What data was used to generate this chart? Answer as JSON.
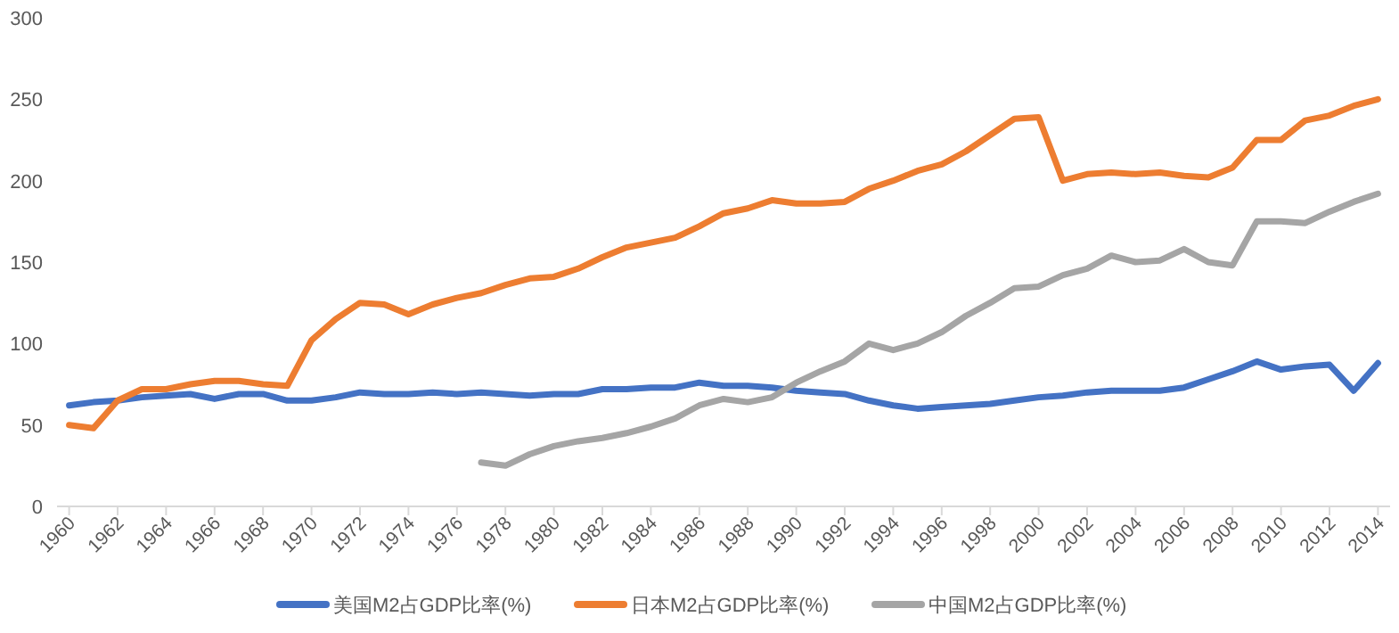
{
  "chart_data": {
    "type": "line",
    "categories": [
      "1960",
      null,
      "1962",
      null,
      "1964",
      null,
      "1966",
      null,
      "1968",
      null,
      "1970",
      null,
      "1972",
      null,
      "1974",
      null,
      "1976",
      null,
      "1978",
      null,
      "1980",
      null,
      "1982",
      null,
      "1984",
      null,
      "1986",
      null,
      "1988",
      null,
      "1990",
      null,
      "1992",
      null,
      "1994",
      null,
      "1996",
      null,
      "1998",
      null,
      "2000",
      null,
      "2002",
      null,
      "2004",
      null,
      "2006",
      null,
      "2008",
      null,
      "2010",
      null,
      "2012",
      null,
      "2014"
    ],
    "series": [
      {
        "name": "美国M2占GDP比率(%)",
        "color": "#4472c4",
        "values": [
          62,
          64,
          65,
          67,
          68,
          69,
          66,
          69,
          69,
          65,
          65,
          67,
          70,
          69,
          69,
          70,
          69,
          70,
          69,
          68,
          69,
          69,
          72,
          72,
          73,
          73,
          76,
          74,
          74,
          73,
          71,
          70,
          69,
          65,
          62,
          60,
          61,
          62,
          63,
          65,
          67,
          68,
          70,
          71,
          71,
          71,
          73,
          78,
          83,
          89,
          84,
          86,
          87,
          71,
          88
        ]
      },
      {
        "name": "日本M2占GDP比率(%)",
        "color": "#ed7d31",
        "values": [
          50,
          48,
          65,
          72,
          72,
          75,
          77,
          77,
          75,
          74,
          102,
          115,
          125,
          124,
          118,
          124,
          128,
          131,
          136,
          140,
          141,
          146,
          153,
          159,
          162,
          165,
          172,
          180,
          183,
          188,
          186,
          186,
          187,
          195,
          200,
          206,
          210,
          218,
          228,
          238,
          239,
          200,
          204,
          205,
          204,
          205,
          203,
          202,
          208,
          225,
          225,
          237,
          240,
          246,
          250
        ]
      },
      {
        "name": "中国M2占GDP比率(%)",
        "color": "#a5a5a5",
        "values": [
          null,
          null,
          null,
          null,
          null,
          null,
          null,
          null,
          null,
          null,
          null,
          null,
          null,
          null,
          null,
          null,
          null,
          27,
          25,
          32,
          37,
          40,
          42,
          45,
          49,
          54,
          62,
          66,
          64,
          67,
          76,
          83,
          89,
          100,
          96,
          100,
          107,
          117,
          125,
          134,
          135,
          142,
          146,
          154,
          150,
          151,
          158,
          150,
          148,
          175,
          175,
          174,
          181,
          187,
          192
        ]
      }
    ],
    "ylim": [
      0,
      300
    ],
    "yticks": [
      0,
      50,
      100,
      150,
      200,
      250,
      300
    ],
    "legend": "bottom"
  }
}
